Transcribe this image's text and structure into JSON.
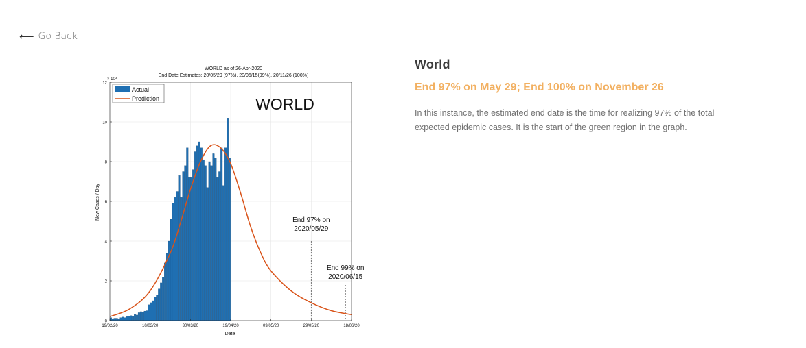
{
  "nav": {
    "back_label": "Go Back",
    "back_icon": "arrow-left-icon"
  },
  "info": {
    "title": "World",
    "subtitle": "End 97% on May 29; End 100% on November 26",
    "description": "In this instance, the estimated end date is the time for realizing 97% of the total expected epidemic cases. It is the start of the green region in the graph."
  },
  "colors": {
    "accent": "#f2b061",
    "bar": "#1f6fb2",
    "prediction": "#d95319"
  },
  "chart_data": {
    "type": "bar",
    "title": "WORLD as of 26-Apr-2020",
    "subtitle": "End Date Estimates: 20/05/29 (97%), 20/06/15(99%), 20/11/26 (100%)",
    "big_label": "WORLD",
    "xlabel": "Date",
    "ylabel": "New Cases / Day",
    "y_exponent": "× 10⁴",
    "ylim": [
      0,
      12
    ],
    "y_ticks": [
      "0",
      "2",
      "4",
      "6",
      "8",
      "10",
      "12"
    ],
    "x_tick_labels": [
      "19/02/20",
      "10/03/20",
      "30/03/20",
      "19/04/20",
      "09/05/20",
      "29/05/20",
      "18/06/20"
    ],
    "x_start_day": 0,
    "x_end_day": 120,
    "x_tick_days": [
      0,
      20,
      40,
      60,
      80,
      100,
      120
    ],
    "legend": [
      "Actual",
      "Prediction"
    ],
    "legend_position": "top-left",
    "grid": true,
    "actual_values": [
      0.15,
      0.1,
      0.12,
      0.12,
      0.1,
      0.15,
      0.18,
      0.15,
      0.2,
      0.22,
      0.25,
      0.22,
      0.3,
      0.28,
      0.4,
      0.45,
      0.42,
      0.48,
      0.5,
      0.8,
      0.9,
      1.0,
      1.2,
      1.3,
      1.6,
      1.9,
      2.2,
      2.9,
      3.4,
      4.0,
      5.1,
      5.9,
      6.2,
      6.5,
      7.3,
      6.2,
      7.5,
      7.8,
      8.7,
      7.2,
      7.2,
      7.6,
      8.5,
      8.8,
      9.0,
      8.7,
      8.1,
      7.8,
      6.7,
      8.0,
      7.8,
      8.4,
      8.2,
      7.2,
      7.5,
      8.7,
      6.8,
      8.7,
      10.2,
      8.2
    ],
    "prediction": {
      "x": [
        0,
        10,
        20,
        30,
        35,
        40,
        45,
        50,
        55,
        60,
        65,
        70,
        75,
        80,
        90,
        100,
        110,
        120
      ],
      "values": [
        0.2,
        0.6,
        1.5,
        3.4,
        4.9,
        6.6,
        8.0,
        8.8,
        8.7,
        7.9,
        6.4,
        4.7,
        3.4,
        2.5,
        1.5,
        0.9,
        0.5,
        0.3
      ]
    },
    "annotations": [
      {
        "label_line1": "End 97% on",
        "label_line2": "2020/05/29",
        "day": 100
      },
      {
        "label_line1": "End 99% on",
        "label_line2": "2020/06/15",
        "day": 117
      }
    ]
  }
}
